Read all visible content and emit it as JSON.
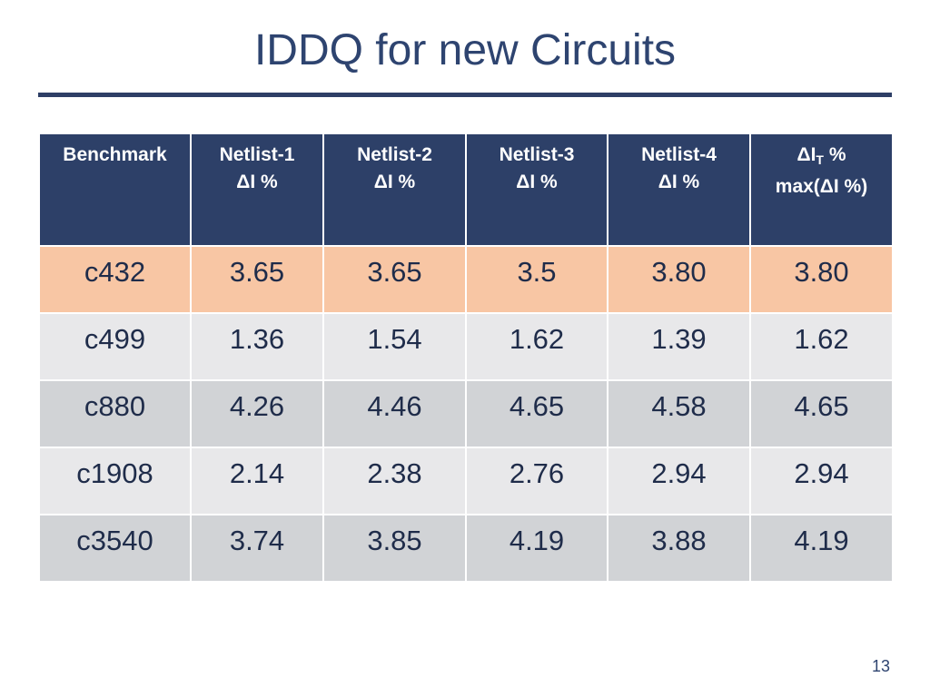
{
  "slide": {
    "title": "IDDQ for new Circuits",
    "page_number": "13"
  },
  "table": {
    "headers": [
      {
        "line1": "Benchmark",
        "line2": ""
      },
      {
        "line1": "Netlist-1",
        "line2": "ΔI %"
      },
      {
        "line1": "Netlist-2",
        "line2": "ΔI %"
      },
      {
        "line1": "Netlist-3",
        "line2": "ΔI %"
      },
      {
        "line1": "Netlist-4",
        "line2": "ΔI %"
      },
      {
        "line1_a": "ΔI",
        "line1_sub": "T",
        "line1_b": " %",
        "line2": "max(ΔI %)"
      }
    ],
    "rows": [
      [
        "c432",
        "3.65",
        "3.65",
        "3.5",
        "3.80",
        "3.80"
      ],
      [
        "c499",
        "1.36",
        "1.54",
        "1.62",
        "1.39",
        "1.62"
      ],
      [
        "c880",
        "4.26",
        "4.46",
        "4.65",
        "4.58",
        "4.65"
      ],
      [
        "c1908",
        "2.14",
        "2.38",
        "2.76",
        "2.94",
        "2.94"
      ],
      [
        "c3540",
        "3.74",
        "3.85",
        "4.19",
        "3.88",
        "4.19"
      ]
    ]
  },
  "colors": {
    "header_bg": "#2d4068",
    "highlight_row": "#f8c6a4",
    "row_light": "#e8e8ea",
    "row_dark": "#d1d3d6",
    "title_text": "#2e4470"
  }
}
